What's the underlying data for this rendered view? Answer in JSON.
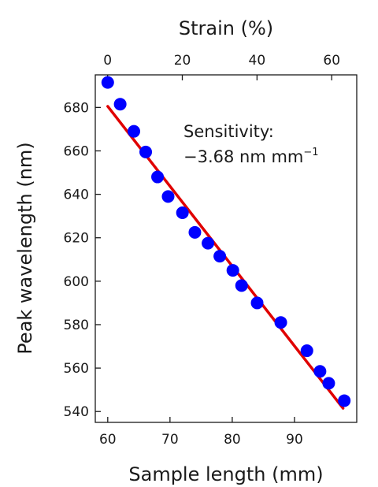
{
  "chart_data": {
    "type": "scatter",
    "xlabel": "Sample length (mm)",
    "ylabel": "Peak wavelength (nm)",
    "x2label": "Strain (%)",
    "xlim": [
      58,
      100
    ],
    "ylim": [
      535,
      695
    ],
    "x2lim": [
      -3.3,
      66.7
    ],
    "x_ticks": [
      60,
      70,
      80,
      90
    ],
    "y_ticks": [
      540,
      560,
      580,
      600,
      620,
      640,
      660,
      680
    ],
    "x2_ticks": [
      0,
      20,
      40,
      60
    ],
    "grid": false,
    "point_color": "#0000ff",
    "fit_color": "#e00000",
    "annotation": {
      "line1": "Sensitivity:",
      "line2": "−3.68 nm mm",
      "line2_sup": "−1"
    },
    "series": [
      {
        "kind": "points",
        "x": [
          60.0,
          62.0,
          64.2,
          66.1,
          68.0,
          69.7,
          72.0,
          74.0,
          76.1,
          78.0,
          80.1,
          81.5,
          84.0,
          87.8,
          92.0,
          94.1,
          95.5,
          98.0
        ],
        "y": [
          691.5,
          681.5,
          669,
          659.5,
          648,
          639,
          631.5,
          622.5,
          617.5,
          611.5,
          605,
          598,
          590,
          581,
          568,
          558.5,
          553,
          545
        ]
      },
      {
        "kind": "fit",
        "x": [
          60,
          97.8
        ],
        "y": [
          680.5,
          541.5
        ]
      }
    ]
  }
}
